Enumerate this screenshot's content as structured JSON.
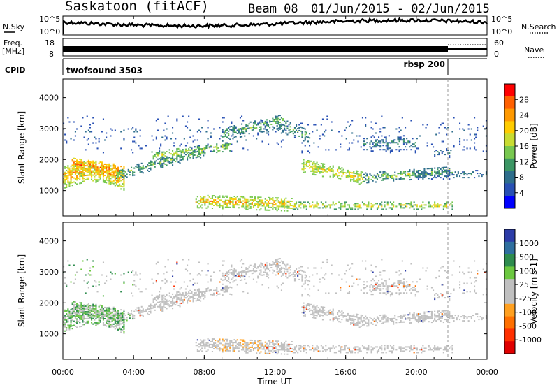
{
  "header": {
    "station": "Saskatoon (fitACF)",
    "beam": "Beam 08",
    "dates": "01/Jun/2015 - 02/Jun/2015"
  },
  "strip_nsky": {
    "left_label": "N.Sky",
    "tick_top": "10^5",
    "tick_bottom": "10^0",
    "right_label": "N.Search",
    "right_tick_top": "10^5",
    "right_tick_bottom": "10^0"
  },
  "strip_freq": {
    "left_label_1": "Freq.",
    "left_label_2": "[MHz]",
    "tick_top": "18",
    "tick_bottom": "8",
    "right_label": "Nave",
    "right_tick_top": "60",
    "right_tick_bottom": "0"
  },
  "strip_cpid": {
    "left_label": "CPID",
    "mode_1": "twofsound 3503",
    "mode_1_start_hour": 0,
    "mode_2": "rbsp 200",
    "mode_2_start_hour": 22
  },
  "chart_data": [
    {
      "type": "heatmap",
      "name": "power-panel",
      "ylabel": "Slant Range [km]",
      "yticks": [
        1000,
        2000,
        3000,
        4000
      ],
      "ylim": [
        180,
        4600
      ],
      "x_hours": [
        0,
        24
      ],
      "colorbar": {
        "label": "Power [dB]",
        "ticks": [
          "28",
          "24",
          "20",
          "16",
          "12",
          "8",
          "4"
        ],
        "colors": [
          "#ff0000",
          "#ff6000",
          "#ff9900",
          "#ffcc00",
          "#c8dc32",
          "#78c850",
          "#3c9664",
          "#2e6e8c",
          "#2850b4",
          "#0000ff"
        ],
        "range": [
          0,
          30
        ]
      }
    },
    {
      "type": "heatmap",
      "name": "velocity-panel",
      "ylabel": "Slant Range [km]",
      "yticks": [
        1000,
        2000,
        3000,
        4000
      ],
      "ylim": [
        180,
        4600
      ],
      "x_hours": [
        0,
        24
      ],
      "colorbar": {
        "label": "Velocity [m s-1]",
        "ticks": [
          "1000",
          "500",
          "100",
          "25",
          "-25",
          "-100",
          "-500",
          "-1000"
        ],
        "colors": [
          "#2c3ca8",
          "#2f6f9f",
          "#2e8c4e",
          "#6cc840",
          "#c0c0c0",
          "#c0c0c0",
          "#ffa020",
          "#ff7000",
          "#ff3000",
          "#e00000"
        ]
      }
    }
  ],
  "xaxis": {
    "ticks": [
      "00:00",
      "04:00",
      "08:00",
      "12:00",
      "16:00",
      "20:00",
      "00:00"
    ],
    "label": "Time UT"
  }
}
